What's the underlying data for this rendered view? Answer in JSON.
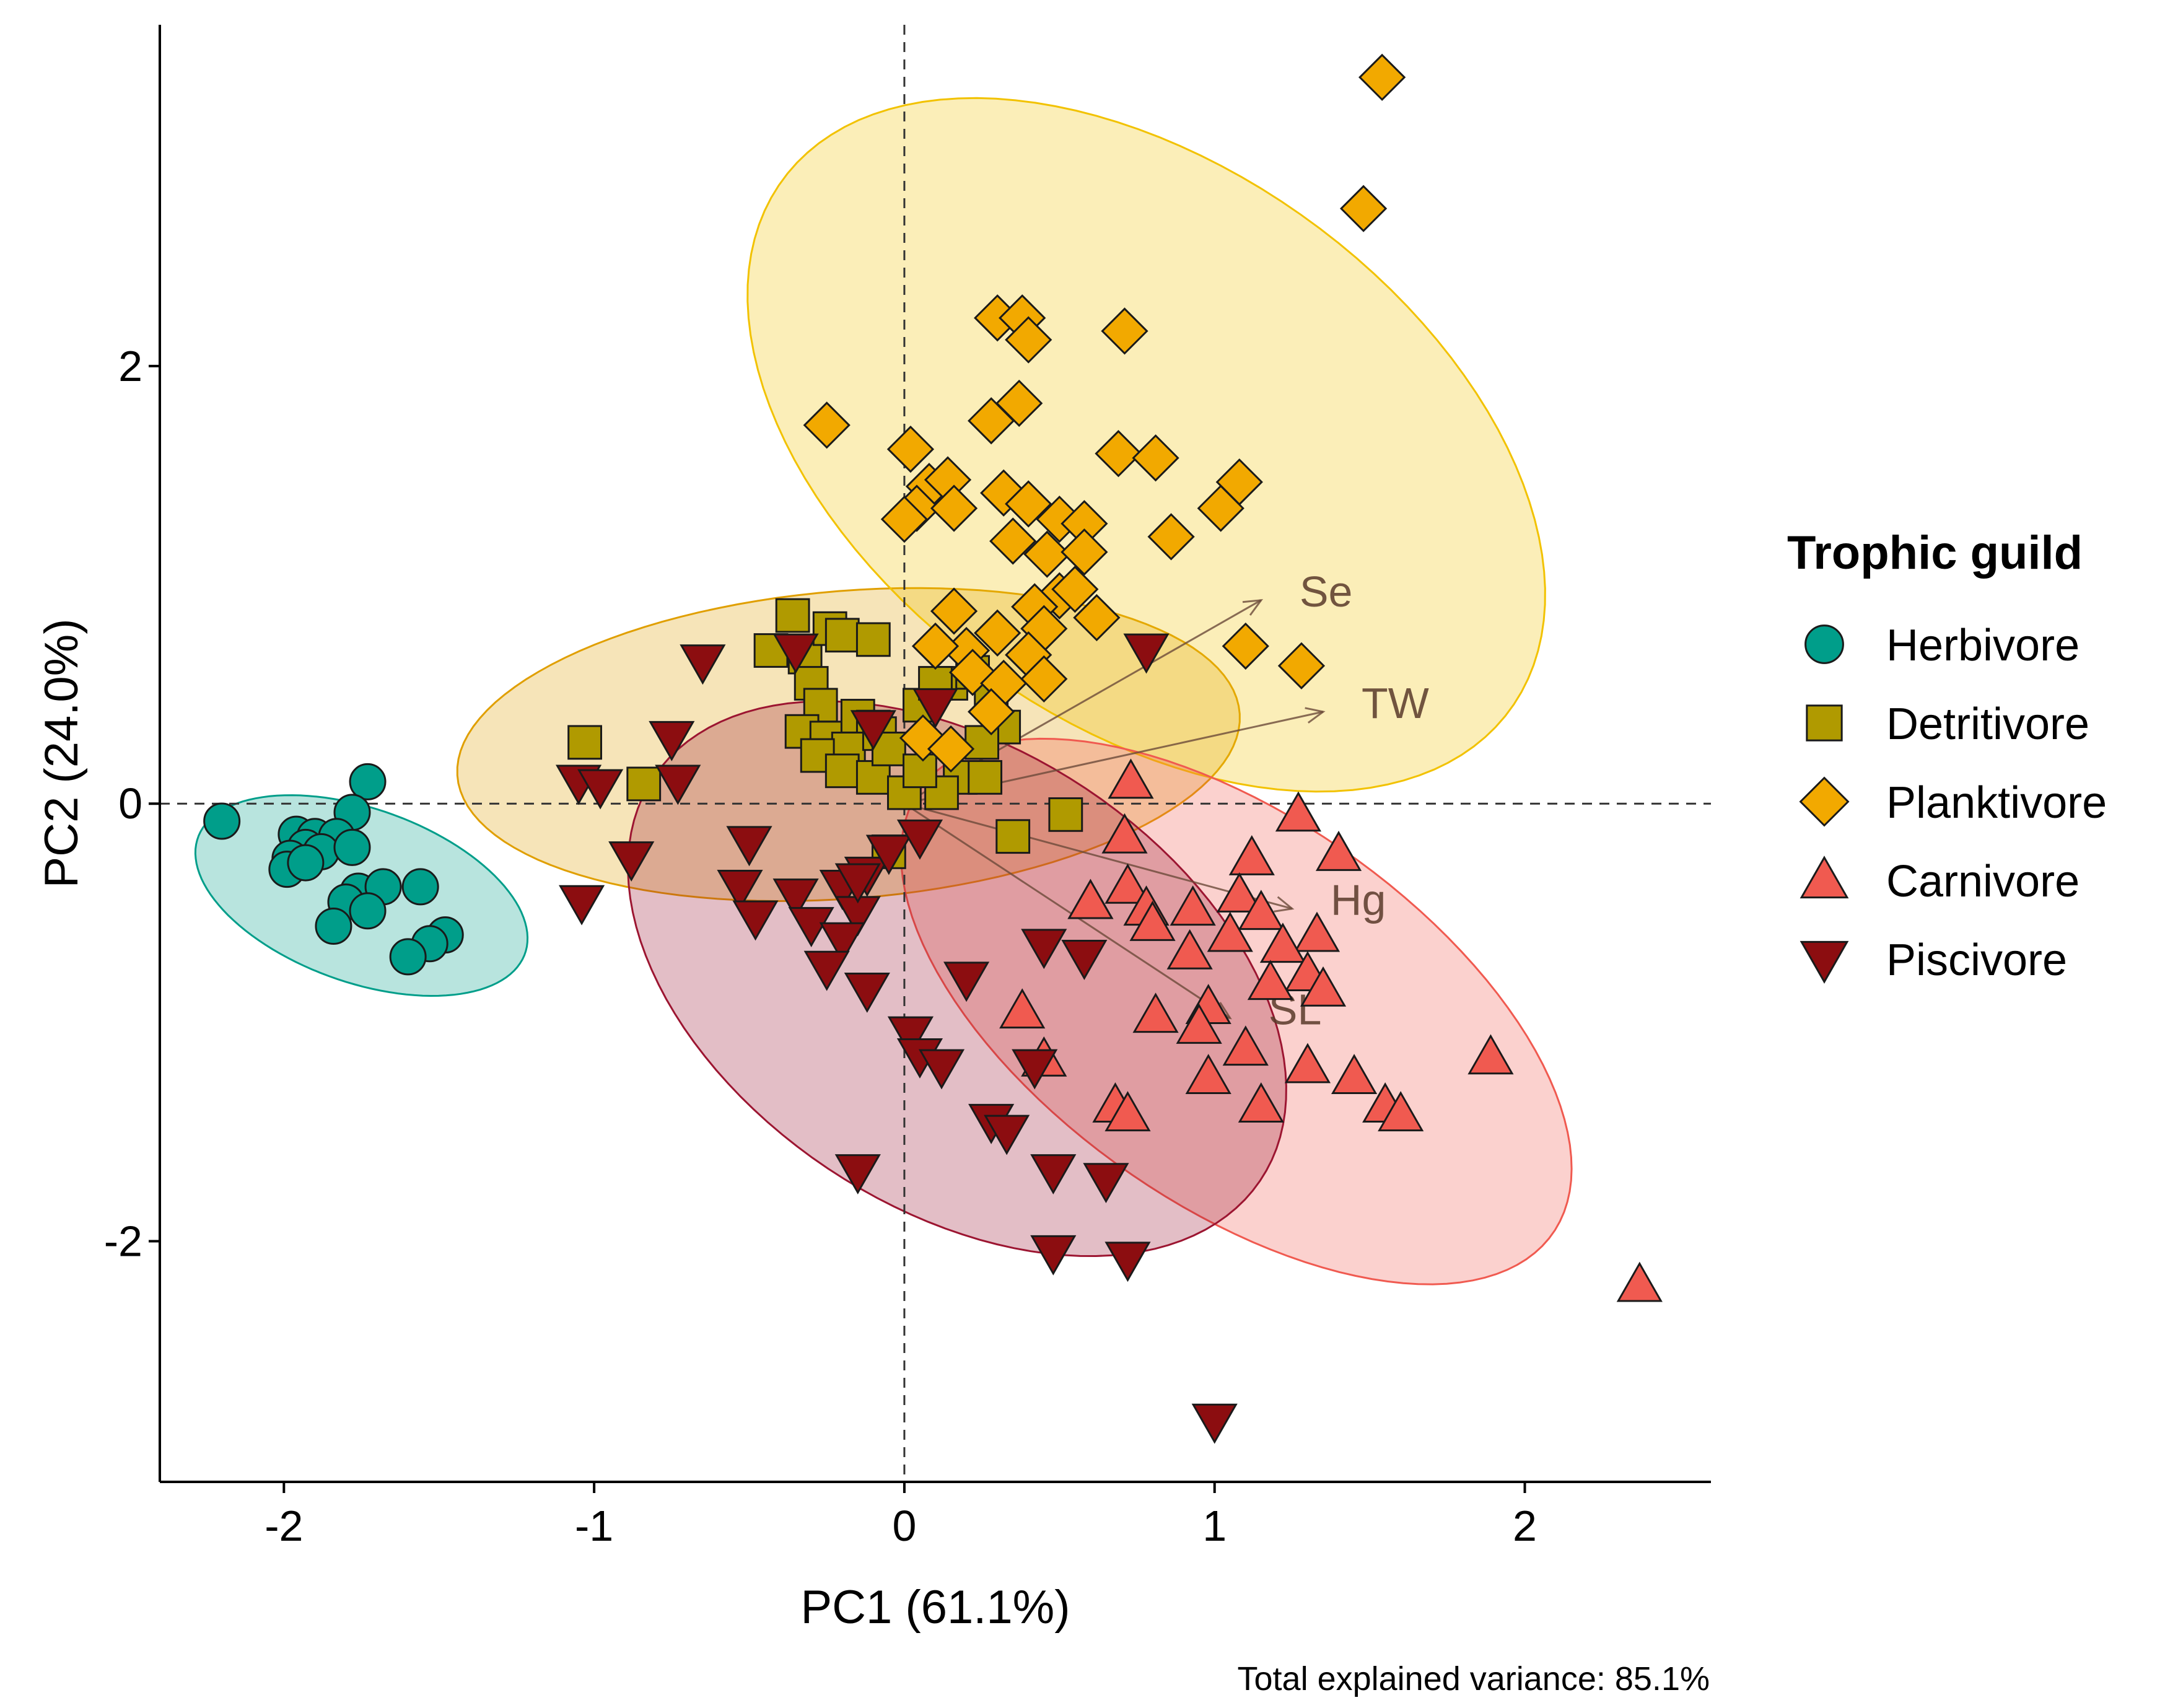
{
  "chart_data": {
    "type": "scatter",
    "xlabel": "PC1 (61.1%)",
    "ylabel": "PC2 (24.0%)",
    "caption": "Total explained variance: 85.1%",
    "xlim": [
      -2.4,
      2.6
    ],
    "ylim": [
      -3.1,
      3.56
    ],
    "xticks": [
      -2,
      -1,
      0,
      1,
      2
    ],
    "yticks": [
      -2,
      0,
      2
    ],
    "reference_lines": {
      "x": 0,
      "y": 0,
      "style": "dashed"
    },
    "legend": {
      "title": "Trophic guild",
      "position": "right"
    },
    "series": [
      {
        "name": "Herbivore",
        "shape": "circle",
        "color": "#009E8A",
        "ellipse_color": "#009E8A",
        "ellipse": {
          "cx": -1.75,
          "cy": -0.42,
          "rx": 0.6,
          "ry": 0.37,
          "angle": -35
        },
        "points": [
          [
            -2.2,
            -0.08
          ],
          [
            -1.73,
            0.1
          ],
          [
            -1.78,
            -0.04
          ],
          [
            -1.96,
            -0.14
          ],
          [
            -1.9,
            -0.15
          ],
          [
            -1.83,
            -0.15
          ],
          [
            -1.93,
            -0.2
          ],
          [
            -1.98,
            -0.25
          ],
          [
            -1.88,
            -0.22
          ],
          [
            -1.78,
            -0.2
          ],
          [
            -1.99,
            -0.3
          ],
          [
            -1.93,
            -0.27
          ],
          [
            -1.76,
            -0.4
          ],
          [
            -1.68,
            -0.38
          ],
          [
            -1.8,
            -0.45
          ],
          [
            -1.56,
            -0.38
          ],
          [
            -1.73,
            -0.49
          ],
          [
            -1.84,
            -0.56
          ],
          [
            -1.48,
            -0.6
          ],
          [
            -1.53,
            -0.64
          ],
          [
            -1.6,
            -0.7
          ]
        ]
      },
      {
        "name": "Detritivore",
        "shape": "square",
        "color": "#B09A00",
        "ellipse_color": "#E09F00",
        "ellipse": {
          "cx": -0.18,
          "cy": 0.27,
          "rx": 1.27,
          "ry": 0.7,
          "angle": 8
        },
        "points": [
          [
            -1.03,
            0.28
          ],
          [
            -0.84,
            0.09
          ],
          [
            -0.36,
            0.86
          ],
          [
            -0.32,
            0.67
          ],
          [
            -0.24,
            0.8
          ],
          [
            -0.2,
            0.77
          ],
          [
            -0.1,
            0.75
          ],
          [
            -0.43,
            0.7
          ],
          [
            -0.3,
            0.55
          ],
          [
            -0.27,
            0.45
          ],
          [
            -0.33,
            0.33
          ],
          [
            -0.25,
            0.3
          ],
          [
            -0.15,
            0.4
          ],
          [
            -0.1,
            0.35
          ],
          [
            -0.18,
            0.25
          ],
          [
            -0.08,
            0.32
          ],
          [
            -0.28,
            0.22
          ],
          [
            -0.2,
            0.15
          ],
          [
            -0.1,
            0.12
          ],
          [
            -0.05,
            0.25
          ],
          [
            0.05,
            0.45
          ],
          [
            0.15,
            0.55
          ],
          [
            0.22,
            0.6
          ],
          [
            0.28,
            0.48
          ],
          [
            0.32,
            0.35
          ],
          [
            0.25,
            0.28
          ],
          [
            0.18,
            0.12
          ],
          [
            0.12,
            0.05
          ],
          [
            0.0,
            0.05
          ],
          [
            0.05,
            0.15
          ],
          [
            0.1,
            0.55
          ],
          [
            -0.05,
            -0.22
          ],
          [
            0.35,
            -0.15
          ],
          [
            0.52,
            -0.05
          ],
          [
            0.26,
            0.12
          ]
        ]
      },
      {
        "name": "Planktivore",
        "shape": "diamond",
        "color": "#F2A900",
        "ellipse_color": "#F2C200",
        "ellipse": {
          "cx": 0.78,
          "cy": 1.64,
          "rx": 1.05,
          "ry": 1.75,
          "angle": 32
        },
        "points": [
          [
            1.54,
            3.32
          ],
          [
            1.48,
            2.72
          ],
          [
            0.3,
            2.22
          ],
          [
            0.38,
            2.22
          ],
          [
            0.4,
            2.12
          ],
          [
            0.71,
            2.16
          ],
          [
            0.37,
            1.83
          ],
          [
            0.28,
            1.75
          ],
          [
            -0.25,
            1.73
          ],
          [
            0.69,
            1.6
          ],
          [
            0.81,
            1.58
          ],
          [
            1.08,
            1.47
          ],
          [
            1.02,
            1.35
          ],
          [
            0.86,
            1.22
          ],
          [
            0.02,
            1.62
          ],
          [
            0.08,
            1.45
          ],
          [
            0.14,
            1.48
          ],
          [
            0.04,
            1.35
          ],
          [
            0.16,
            1.35
          ],
          [
            0.32,
            1.42
          ],
          [
            0.4,
            1.37
          ],
          [
            0.5,
            1.3
          ],
          [
            0.58,
            1.28
          ],
          [
            0.0,
            1.3
          ],
          [
            0.35,
            1.2
          ],
          [
            0.46,
            1.14
          ],
          [
            0.58,
            1.15
          ],
          [
            0.5,
            0.95
          ],
          [
            0.42,
            0.9
          ],
          [
            0.62,
            0.85
          ],
          [
            0.55,
            0.98
          ],
          [
            0.45,
            0.8
          ],
          [
            0.16,
            0.88
          ],
          [
            0.3,
            0.78
          ],
          [
            0.2,
            0.7
          ],
          [
            0.4,
            0.68
          ],
          [
            0.1,
            0.72
          ],
          [
            0.22,
            0.6
          ],
          [
            0.32,
            0.55
          ],
          [
            0.45,
            0.57
          ],
          [
            0.28,
            0.42
          ],
          [
            0.06,
            0.3
          ],
          [
            1.1,
            0.72
          ],
          [
            1.28,
            0.63
          ],
          [
            0.15,
            0.25
          ]
        ]
      },
      {
        "name": "Carnivore",
        "shape": "triangle-up",
        "color": "#F05A50",
        "ellipse_color": "#F05A50",
        "ellipse": {
          "cx": 1.07,
          "cy": -0.95,
          "rx": 1.47,
          "ry": 0.75,
          "angle": -52
        },
        "points": [
          [
            1.89,
            -1.16
          ],
          [
            2.37,
            -2.2
          ],
          [
            0.73,
            0.1
          ],
          [
            1.27,
            -0.05
          ],
          [
            1.4,
            -0.23
          ],
          [
            0.71,
            -0.15
          ],
          [
            1.12,
            -0.25
          ],
          [
            0.72,
            -0.38
          ],
          [
            1.08,
            -0.42
          ],
          [
            0.6,
            -0.45
          ],
          [
            0.78,
            -0.48
          ],
          [
            0.93,
            -0.48
          ],
          [
            1.15,
            -0.5
          ],
          [
            1.33,
            -0.6
          ],
          [
            0.8,
            -0.55
          ],
          [
            0.92,
            -0.68
          ],
          [
            1.05,
            -0.6
          ],
          [
            1.22,
            -0.65
          ],
          [
            1.3,
            -0.78
          ],
          [
            1.35,
            -0.85
          ],
          [
            1.18,
            -0.82
          ],
          [
            0.98,
            -0.93
          ],
          [
            0.38,
            -0.95
          ],
          [
            0.81,
            -0.97
          ],
          [
            0.95,
            -1.02
          ],
          [
            1.1,
            -1.12
          ],
          [
            1.3,
            -1.2
          ],
          [
            1.45,
            -1.25
          ],
          [
            0.45,
            -1.17
          ],
          [
            0.98,
            -1.25
          ],
          [
            0.68,
            -1.38
          ],
          [
            0.72,
            -1.42
          ],
          [
            1.15,
            -1.38
          ],
          [
            1.55,
            -1.38
          ],
          [
            1.6,
            -1.42
          ],
          [
            0.6,
            -0.45
          ]
        ]
      },
      {
        "name": "Piscivore",
        "shape": "triangle-down",
        "color": "#8C0D10",
        "ellipse_color": "#9C1531",
        "ellipse": {
          "cx": 0.17,
          "cy": -0.8,
          "rx": 1.4,
          "ry": 0.88,
          "angle": -57
        },
        "points": [
          [
            -1.05,
            0.1
          ],
          [
            -0.98,
            0.08
          ],
          [
            -0.75,
            0.3
          ],
          [
            -0.73,
            0.1
          ],
          [
            -0.65,
            0.65
          ],
          [
            -0.35,
            0.7
          ],
          [
            -0.88,
            -0.25
          ],
          [
            -0.5,
            -0.18
          ],
          [
            -1.04,
            -0.45
          ],
          [
            -0.53,
            -0.38
          ],
          [
            -0.48,
            -0.52
          ],
          [
            -0.35,
            -0.42
          ],
          [
            -0.2,
            -0.38
          ],
          [
            -0.12,
            -0.32
          ],
          [
            -0.3,
            -0.55
          ],
          [
            -0.15,
            -0.5
          ],
          [
            -0.2,
            -0.62
          ],
          [
            -0.25,
            -0.75
          ],
          [
            -0.12,
            -0.85
          ],
          [
            -0.05,
            -0.22
          ],
          [
            -0.15,
            -0.35
          ],
          [
            -0.1,
            0.35
          ],
          [
            0.05,
            -0.15
          ],
          [
            0.1,
            0.45
          ],
          [
            0.45,
            -0.65
          ],
          [
            0.58,
            -0.7
          ],
          [
            0.2,
            -0.8
          ],
          [
            0.02,
            -1.05
          ],
          [
            0.05,
            -1.15
          ],
          [
            0.12,
            -1.2
          ],
          [
            0.28,
            -1.45
          ],
          [
            0.33,
            -1.5
          ],
          [
            0.42,
            -1.2
          ],
          [
            0.48,
            -1.68
          ],
          [
            0.65,
            -1.72
          ],
          [
            -0.15,
            -1.68
          ],
          [
            0.48,
            -2.05
          ],
          [
            0.72,
            -2.08
          ],
          [
            1.0,
            -2.82
          ],
          [
            0.78,
            0.7
          ]
        ]
      }
    ],
    "vectors": [
      {
        "label": "Se",
        "x": 1.15,
        "y": 0.93
      },
      {
        "label": "TW",
        "x": 1.35,
        "y": 0.42
      },
      {
        "label": "Hg",
        "x": 1.25,
        "y": -0.48
      },
      {
        "label": "SL",
        "x": 1.05,
        "y": -0.98
      }
    ]
  }
}
